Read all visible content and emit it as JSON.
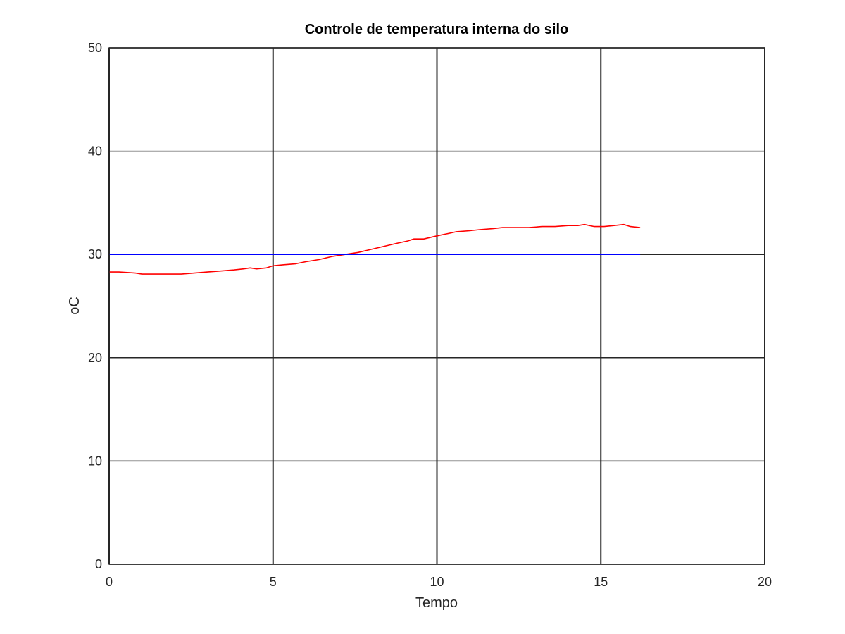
{
  "chart_data": {
    "type": "line",
    "title": "Controle de temperatura interna do silo",
    "xlabel": "Tempo",
    "ylabel": "oC",
    "xlim": [
      0,
      20
    ],
    "ylim": [
      0,
      50
    ],
    "xticks": [
      0,
      5,
      10,
      15,
      20
    ],
    "yticks": [
      0,
      10,
      20,
      30,
      40,
      50
    ],
    "grid": true,
    "legend": "none",
    "series": [
      {
        "color": "#ff0000",
        "x": [
          0,
          0.3,
          0.8,
          1.0,
          1.3,
          1.6,
          1.9,
          2.2,
          2.6,
          3.0,
          3.4,
          3.8,
          4.1,
          4.3,
          4.5,
          4.8,
          5.0,
          5.3,
          5.7,
          6.0,
          6.4,
          6.8,
          7.2,
          7.6,
          8.0,
          8.4,
          8.8,
          9.1,
          9.3,
          9.6,
          10.0,
          10.3,
          10.6,
          11.0,
          11.3,
          11.7,
          12.0,
          12.4,
          12.8,
          13.2,
          13.6,
          14.0,
          14.3,
          14.5,
          14.8,
          15.1,
          15.4,
          15.7,
          15.9,
          16.2
        ],
        "y": [
          28.3,
          28.3,
          28.2,
          28.1,
          28.1,
          28.1,
          28.1,
          28.1,
          28.2,
          28.3,
          28.4,
          28.5,
          28.6,
          28.7,
          28.6,
          28.7,
          28.9,
          29.0,
          29.1,
          29.3,
          29.5,
          29.8,
          30.0,
          30.2,
          30.5,
          30.8,
          31.1,
          31.3,
          31.5,
          31.5,
          31.8,
          32.0,
          32.2,
          32.3,
          32.4,
          32.5,
          32.6,
          32.6,
          32.6,
          32.7,
          32.7,
          32.8,
          32.8,
          32.9,
          32.7,
          32.7,
          32.8,
          32.9,
          32.7,
          32.6
        ]
      },
      {
        "color": "#0000ff",
        "x": [
          0,
          16.2
        ],
        "y": [
          30,
          30
        ]
      }
    ]
  }
}
